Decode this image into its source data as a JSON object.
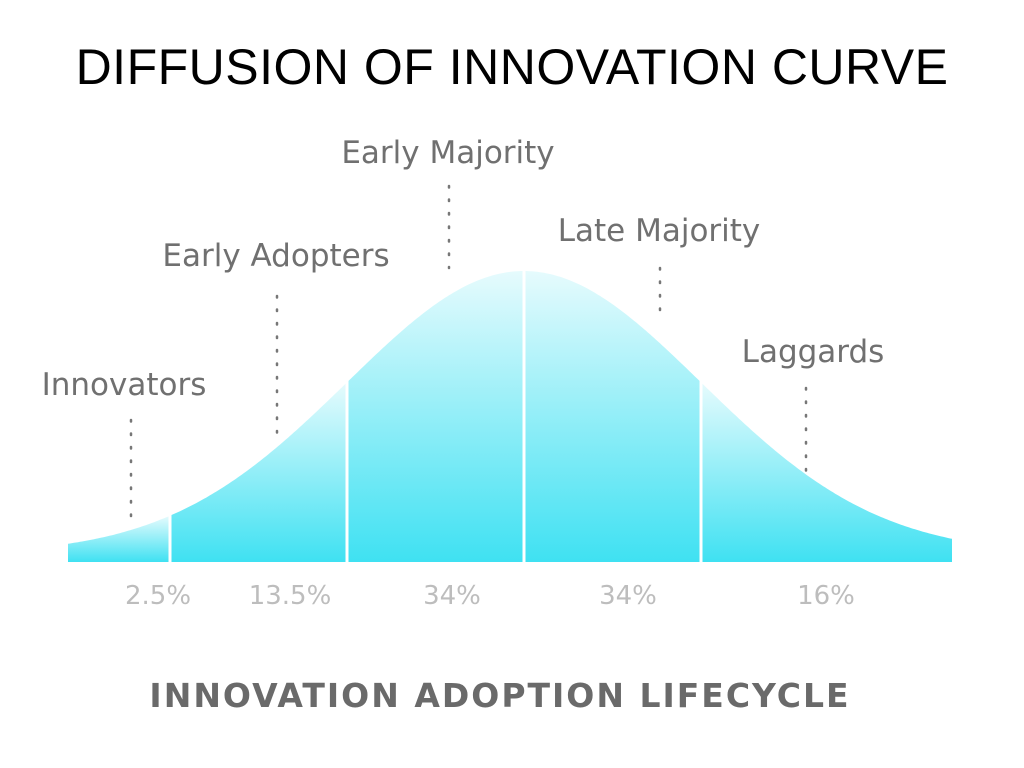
{
  "slide": {
    "title": "DIFFUSION OF INNOVATION CURVE"
  },
  "chart_data": {
    "type": "area",
    "title": "INNOVATION ADOPTION LIFECYCLE",
    "segments": [
      {
        "name": "Innovators",
        "value": 2.5,
        "value_label": "2.5%"
      },
      {
        "name": "Early Adopters",
        "value": 13.5,
        "value_label": "13.5%"
      },
      {
        "name": "Early Majority",
        "value": 34,
        "value_label": "34%"
      },
      {
        "name": "Late Majority",
        "value": 34,
        "value_label": "34%"
      },
      {
        "name": "Laggards",
        "value": 16,
        "value_label": "16%"
      }
    ],
    "curve": "normal",
    "boundaries_sd": [
      -2,
      -1,
      0,
      1
    ],
    "colors": {
      "fill_top": "#e6fbfd",
      "fill_bottom": "#3fe1f2",
      "separator": "#ffffff",
      "leader": "#777777"
    }
  }
}
